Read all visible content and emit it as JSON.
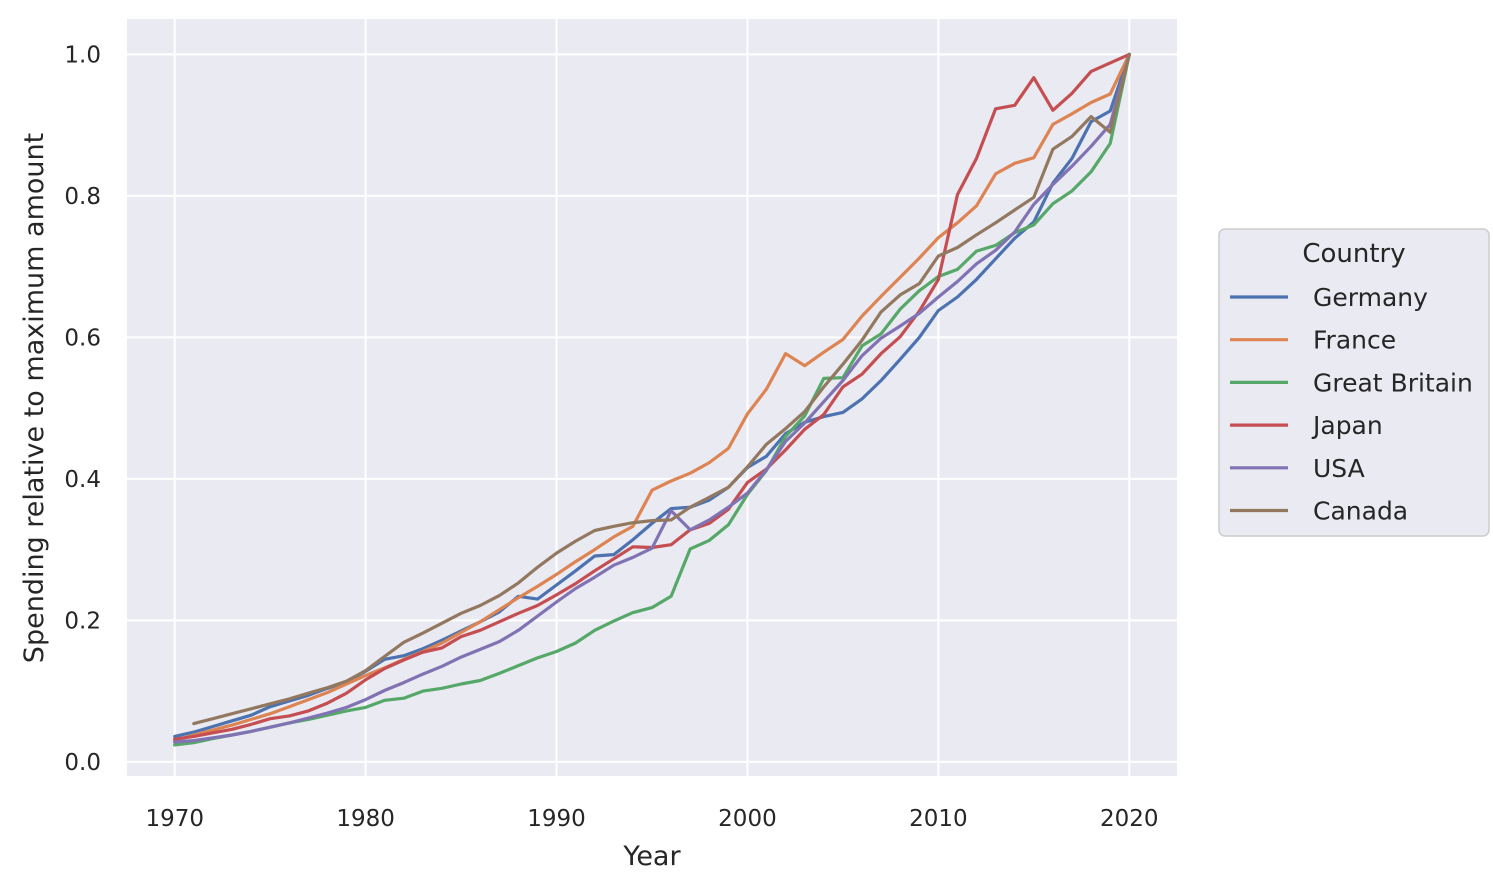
{
  "chart_data": {
    "type": "line",
    "title": "",
    "xlabel": "Year",
    "ylabel": "Spending relative to maximum amount",
    "xlim": [
      1967.5,
      2022.5
    ],
    "ylim": [
      -0.02,
      1.05
    ],
    "xticks": [
      1970,
      1980,
      1990,
      2000,
      2010,
      2020
    ],
    "yticks": [
      0.0,
      0.2,
      0.4,
      0.6,
      0.8,
      1.0
    ],
    "xtick_labels": [
      "1970",
      "1980",
      "1990",
      "2000",
      "2010",
      "2020"
    ],
    "ytick_labels": [
      "0.0",
      "0.2",
      "0.4",
      "0.6",
      "0.8",
      "1.0"
    ],
    "grid": true,
    "background": "#eaeaf2",
    "legend": {
      "title": "Country",
      "placement": "right-outside"
    },
    "series": [
      {
        "name": "Germany",
        "color": "#4c72b0",
        "x": [
          1970,
          1971,
          1972,
          1973,
          1974,
          1975,
          1976,
          1977,
          1978,
          1979,
          1980,
          1981,
          1982,
          1983,
          1984,
          1985,
          1986,
          1987,
          1988,
          1989,
          1990,
          1991,
          1992,
          1993,
          1994,
          1995,
          1996,
          1997,
          1998,
          1999,
          2000,
          2001,
          2002,
          2003,
          2004,
          2005,
          2006,
          2007,
          2008,
          2009,
          2010,
          2011,
          2012,
          2013,
          2014,
          2015,
          2016,
          2017,
          2018,
          2019,
          2020
        ],
        "y": [
          0.036,
          0.042,
          0.05,
          0.058,
          0.066,
          0.078,
          0.086,
          0.094,
          0.104,
          0.113,
          0.128,
          0.145,
          0.15,
          0.16,
          0.172,
          0.185,
          0.198,
          0.212,
          0.234,
          0.23,
          0.25,
          0.27,
          0.291,
          0.293,
          0.314,
          0.337,
          0.358,
          0.36,
          0.37,
          0.388,
          0.416,
          0.432,
          0.464,
          0.48,
          0.488,
          0.494,
          0.513,
          0.539,
          0.569,
          0.6,
          0.638,
          0.657,
          0.682,
          0.711,
          0.74,
          0.763,
          0.818,
          0.853,
          0.905,
          0.92,
          1.0
        ]
      },
      {
        "name": "France",
        "color": "#dd8452",
        "x": [
          1970,
          1971,
          1972,
          1973,
          1974,
          1975,
          1976,
          1977,
          1978,
          1979,
          1980,
          1981,
          1982,
          1983,
          1984,
          1985,
          1986,
          1987,
          1988,
          1989,
          1990,
          1991,
          1992,
          1993,
          1994,
          1995,
          1996,
          1997,
          1998,
          1999,
          2000,
          2001,
          2002,
          2003,
          2004,
          2005,
          2006,
          2007,
          2008,
          2009,
          2010,
          2011,
          2012,
          2013,
          2014,
          2015,
          2016,
          2017,
          2018,
          2019,
          2020
        ],
        "y": [
          0.03,
          0.038,
          0.045,
          0.052,
          0.06,
          0.068,
          0.078,
          0.088,
          0.098,
          0.11,
          0.122,
          0.133,
          0.145,
          0.156,
          0.168,
          0.183,
          0.198,
          0.215,
          0.232,
          0.248,
          0.265,
          0.283,
          0.3,
          0.318,
          0.333,
          0.384,
          0.397,
          0.408,
          0.423,
          0.443,
          0.492,
          0.527,
          0.577,
          0.56,
          0.579,
          0.597,
          0.63,
          0.658,
          0.685,
          0.712,
          0.741,
          0.762,
          0.786,
          0.831,
          0.846,
          0.854,
          0.901,
          0.916,
          0.932,
          0.944,
          1.0
        ]
      },
      {
        "name": "Great Britain",
        "color": "#55a868",
        "x": [
          1970,
          1971,
          1972,
          1973,
          1974,
          1975,
          1976,
          1977,
          1978,
          1979,
          1980,
          1981,
          1982,
          1983,
          1984,
          1985,
          1986,
          1987,
          1988,
          1989,
          1990,
          1991,
          1992,
          1993,
          1994,
          1995,
          1996,
          1997,
          1998,
          1999,
          2000,
          2001,
          2002,
          2003,
          2004,
          2005,
          2006,
          2007,
          2008,
          2009,
          2010,
          2011,
          2012,
          2013,
          2014,
          2015,
          2016,
          2017,
          2018,
          2019,
          2020
        ],
        "y": [
          0.024,
          0.027,
          0.033,
          0.038,
          0.043,
          0.049,
          0.055,
          0.06,
          0.066,
          0.072,
          0.077,
          0.087,
          0.09,
          0.1,
          0.104,
          0.11,
          0.115,
          0.125,
          0.136,
          0.147,
          0.156,
          0.168,
          0.186,
          0.199,
          0.211,
          0.218,
          0.234,
          0.301,
          0.313,
          0.335,
          0.378,
          0.412,
          0.46,
          0.489,
          0.542,
          0.543,
          0.588,
          0.605,
          0.64,
          0.666,
          0.686,
          0.696,
          0.722,
          0.73,
          0.748,
          0.759,
          0.789,
          0.807,
          0.834,
          0.874,
          1.0
        ]
      },
      {
        "name": "Japan",
        "color": "#c44e52",
        "x": [
          1970,
          1971,
          1972,
          1973,
          1974,
          1975,
          1976,
          1977,
          1978,
          1979,
          1980,
          1981,
          1982,
          1983,
          1984,
          1985,
          1986,
          1987,
          1988,
          1989,
          1990,
          1991,
          1992,
          1993,
          1994,
          1995,
          1996,
          1997,
          1998,
          1999,
          2000,
          2001,
          2002,
          2003,
          2004,
          2005,
          2006,
          2007,
          2008,
          2009,
          2010,
          2011,
          2012,
          2013,
          2014,
          2015,
          2016,
          2017,
          2018,
          2019,
          2020
        ],
        "y": [
          0.032,
          0.036,
          0.041,
          0.046,
          0.053,
          0.061,
          0.065,
          0.072,
          0.083,
          0.097,
          0.116,
          0.132,
          0.144,
          0.155,
          0.161,
          0.177,
          0.186,
          0.198,
          0.21,
          0.221,
          0.236,
          0.252,
          0.27,
          0.287,
          0.304,
          0.303,
          0.307,
          0.328,
          0.337,
          0.357,
          0.395,
          0.414,
          0.441,
          0.47,
          0.491,
          0.53,
          0.548,
          0.577,
          0.601,
          0.637,
          0.682,
          0.802,
          0.853,
          0.923,
          0.928,
          0.967,
          0.921,
          0.945,
          0.976,
          0.988,
          1.0
        ]
      },
      {
        "name": "USA",
        "color": "#8172b3",
        "x": [
          1970,
          1971,
          1972,
          1973,
          1974,
          1975,
          1976,
          1977,
          1978,
          1979,
          1980,
          1981,
          1982,
          1983,
          1984,
          1985,
          1986,
          1987,
          1988,
          1989,
          1990,
          1991,
          1992,
          1993,
          1994,
          1995,
          1996,
          1997,
          1998,
          1999,
          2000,
          2001,
          2002,
          2003,
          2004,
          2005,
          2006,
          2007,
          2008,
          2009,
          2010,
          2011,
          2012,
          2013,
          2014,
          2015,
          2016,
          2017,
          2018,
          2019,
          2020
        ],
        "y": [
          0.028,
          0.03,
          0.034,
          0.038,
          0.043,
          0.049,
          0.055,
          0.062,
          0.069,
          0.077,
          0.088,
          0.101,
          0.112,
          0.124,
          0.135,
          0.148,
          0.159,
          0.17,
          0.186,
          0.206,
          0.226,
          0.245,
          0.261,
          0.278,
          0.289,
          0.302,
          0.355,
          0.328,
          0.342,
          0.36,
          0.38,
          0.413,
          0.453,
          0.479,
          0.509,
          0.539,
          0.574,
          0.599,
          0.616,
          0.634,
          0.657,
          0.679,
          0.704,
          0.723,
          0.749,
          0.788,
          0.816,
          0.842,
          0.87,
          0.901,
          1.0
        ]
      },
      {
        "name": "Canada",
        "color": "#937860",
        "x": [
          1971,
          1972,
          1973,
          1974,
          1975,
          1976,
          1977,
          1978,
          1979,
          1980,
          1981,
          1982,
          1983,
          1984,
          1985,
          1986,
          1987,
          1988,
          1989,
          1990,
          1991,
          1992,
          1993,
          1994,
          1995,
          1996,
          1997,
          1998,
          1999,
          2000,
          2001,
          2002,
          2003,
          2004,
          2005,
          2006,
          2007,
          2008,
          2009,
          2010,
          2011,
          2012,
          2013,
          2014,
          2015,
          2016,
          2017,
          2018,
          2019,
          2020
        ],
        "y": [
          0.054,
          0.061,
          0.068,
          0.075,
          0.082,
          0.089,
          0.097,
          0.105,
          0.114,
          0.129,
          0.149,
          0.169,
          0.182,
          0.196,
          0.21,
          0.221,
          0.235,
          0.253,
          0.275,
          0.295,
          0.312,
          0.327,
          0.333,
          0.338,
          0.341,
          0.342,
          0.36,
          0.374,
          0.388,
          0.417,
          0.449,
          0.471,
          0.495,
          0.53,
          0.562,
          0.596,
          0.636,
          0.66,
          0.676,
          0.715,
          0.727,
          0.745,
          0.762,
          0.78,
          0.798,
          0.866,
          0.884,
          0.912,
          0.89,
          1.0
        ]
      }
    ]
  }
}
